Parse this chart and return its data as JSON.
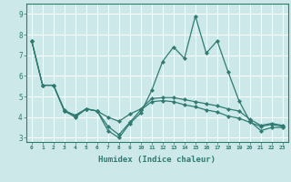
{
  "xlabel": "Humidex (Indice chaleur)",
  "bg_color": "#cce8e8",
  "line_color": "#2e7b72",
  "grid_color": "#ffffff",
  "xlim": [
    -0.5,
    23.5
  ],
  "ylim": [
    2.8,
    9.5
  ],
  "xticks": [
    0,
    1,
    2,
    3,
    4,
    5,
    6,
    7,
    8,
    9,
    10,
    11,
    12,
    13,
    14,
    15,
    16,
    17,
    18,
    19,
    20,
    21,
    22,
    23
  ],
  "yticks": [
    3,
    4,
    5,
    6,
    7,
    8,
    9
  ],
  "line1_y": [
    7.7,
    5.55,
    5.55,
    4.3,
    4.0,
    4.4,
    4.3,
    3.35,
    3.0,
    3.7,
    4.2,
    5.3,
    6.7,
    7.4,
    6.85,
    8.9,
    7.1,
    7.7,
    6.2,
    4.8,
    3.8,
    3.35,
    3.5,
    3.5
  ],
  "line2_y": [
    7.7,
    5.55,
    5.55,
    4.35,
    4.05,
    4.4,
    4.3,
    4.0,
    3.8,
    4.15,
    4.4,
    4.9,
    4.95,
    4.95,
    4.85,
    4.75,
    4.65,
    4.55,
    4.4,
    4.3,
    3.9,
    3.6,
    3.7,
    3.6
  ],
  "line3_y": [
    7.7,
    5.55,
    5.55,
    4.3,
    4.1,
    4.4,
    4.3,
    3.55,
    3.15,
    3.75,
    4.35,
    4.75,
    4.8,
    4.75,
    4.6,
    4.5,
    4.35,
    4.25,
    4.05,
    3.95,
    3.75,
    3.55,
    3.65,
    3.55
  ]
}
